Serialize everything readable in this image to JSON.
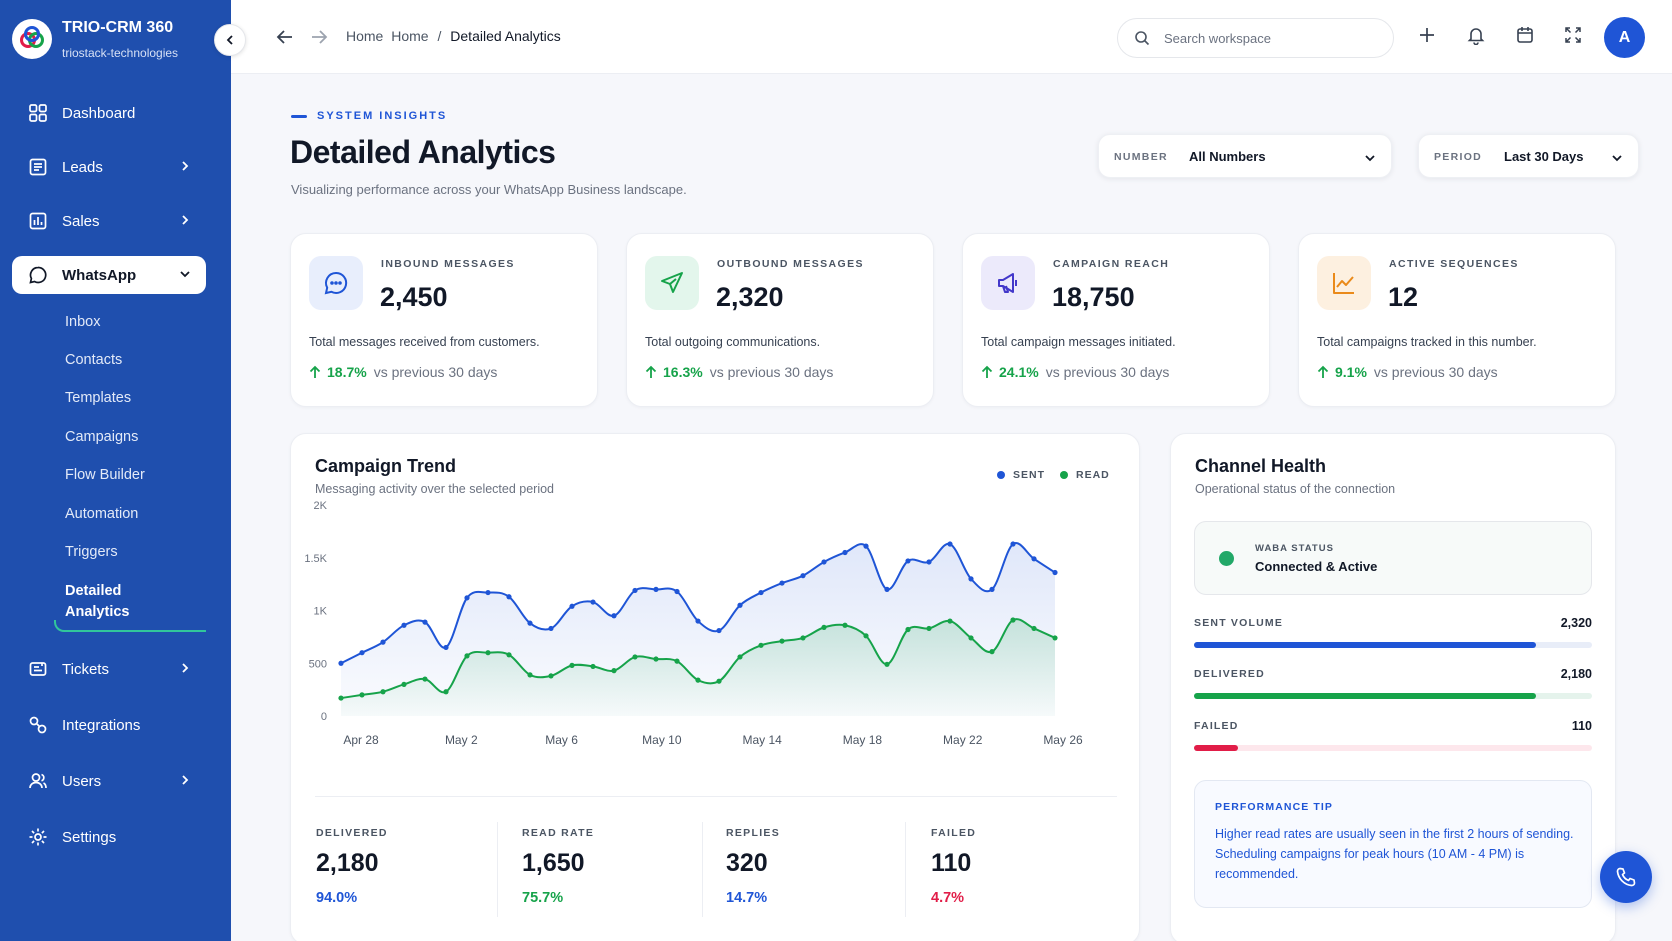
{
  "app": {
    "name": "TRIO-CRM 360",
    "workspace": "triostack-technologies"
  },
  "sidebar": {
    "items": [
      {
        "label": "Dashboard"
      },
      {
        "label": "Leads"
      },
      {
        "label": "Sales"
      },
      {
        "label": "WhatsApp"
      },
      {
        "label": "Tickets"
      },
      {
        "label": "Integrations"
      },
      {
        "label": "Users"
      },
      {
        "label": "Settings"
      }
    ],
    "whatsapp_sub": [
      "Inbox",
      "Contacts",
      "Templates",
      "Campaigns",
      "Flow Builder",
      "Automation",
      "Triggers"
    ],
    "current_sub": "Detailed Analytics"
  },
  "header": {
    "breadcrumb": {
      "home_a": "Home",
      "home_b": "Home",
      "sep": "/",
      "current": "Detailed Analytics"
    },
    "search_placeholder": "Search workspace",
    "avatar": "A"
  },
  "page": {
    "eyebrow": "SYSTEM INSIGHTS",
    "title": "Detailed Analytics",
    "subtitle": "Visualizing performance across your WhatsApp Business landscape.",
    "filters": {
      "number_label": "NUMBER",
      "number_value": "All Numbers",
      "period_label": "PERIOD",
      "period_value": "Last 30 Days"
    }
  },
  "stats": [
    {
      "label": "INBOUND MESSAGES",
      "value": "2,450",
      "desc": "Total messages received from customers.",
      "pct": "18.7%",
      "vs": "vs previous 30 days",
      "icon": "chat-bubble-icon"
    },
    {
      "label": "OUTBOUND MESSAGES",
      "value": "2,320",
      "desc": "Total outgoing communications.",
      "pct": "16.3%",
      "vs": "vs previous 30 days",
      "icon": "paper-plane-icon"
    },
    {
      "label": "CAMPAIGN REACH",
      "value": "18,750",
      "desc": "Total campaign messages initiated.",
      "pct": "24.1%",
      "vs": "vs previous 30 days",
      "icon": "megaphone-icon"
    },
    {
      "label": "ACTIVE SEQUENCES",
      "value": "12",
      "desc": "Total campaigns tracked in this number.",
      "pct": "9.1%",
      "vs": "vs previous 30 days",
      "icon": "trend-line-icon"
    }
  ],
  "trend": {
    "title": "Campaign Trend",
    "subtitle": "Messaging activity over the selected period",
    "legend": {
      "sent": "SENT",
      "read": "READ"
    },
    "kpis": [
      {
        "label": "DELIVERED",
        "value": "2,180",
        "pct": "94.0%",
        "color": "#1f55d6"
      },
      {
        "label": "READ RATE",
        "value": "1,650",
        "pct": "75.7%",
        "color": "#16a34a"
      },
      {
        "label": "REPLIES",
        "value": "320",
        "pct": "14.7%",
        "color": "#1f55d6"
      },
      {
        "label": "FAILED",
        "value": "110",
        "pct": "4.7%",
        "color": "#e11d48"
      }
    ]
  },
  "chart_data": {
    "type": "area",
    "x_tick_labels": [
      "Apr 28",
      "May 2",
      "May 6",
      "May 10",
      "May 14",
      "May 18",
      "May 22",
      "May 26"
    ],
    "y_tick_labels": [
      "0",
      "500",
      "1K",
      "1.5K",
      "2K"
    ],
    "ylim": [
      0,
      2000
    ],
    "series": [
      {
        "name": "SENT",
        "color": "#1f55d6",
        "values": [
          500,
          600,
          700,
          860,
          890,
          650,
          1120,
          1170,
          1130,
          880,
          830,
          1040,
          1080,
          950,
          1190,
          1200,
          1180,
          900,
          810,
          1050,
          1170,
          1260,
          1330,
          1460,
          1550,
          1610,
          1200,
          1470,
          1460,
          1630,
          1300,
          1200,
          1630,
          1490,
          1360
        ]
      },
      {
        "name": "READ",
        "color": "#16a34a",
        "values": [
          170,
          200,
          230,
          300,
          350,
          230,
          570,
          600,
          580,
          390,
          380,
          480,
          470,
          430,
          560,
          540,
          520,
          340,
          330,
          560,
          670,
          710,
          740,
          840,
          860,
          760,
          490,
          820,
          830,
          900,
          740,
          610,
          910,
          830,
          740
        ]
      }
    ]
  },
  "health": {
    "title": "Channel Health",
    "subtitle": "Operational status of the connection",
    "waba_label": "WABA STATUS",
    "waba_value": "Connected & Active",
    "bars": [
      {
        "label": "SENT VOLUME",
        "value": "2,320",
        "fraction": 0.86,
        "color": "#1f55d6",
        "track": "#e8edf8"
      },
      {
        "label": "DELIVERED",
        "value": "2,180",
        "fraction": 0.86,
        "color": "#16a34a",
        "track": "#e5f3ec"
      },
      {
        "label": "FAILED",
        "value": "110",
        "fraction": 0.11,
        "color": "#e11d48",
        "track": "#fde7ec"
      }
    ],
    "tip_title": "PERFORMANCE TIP",
    "tip_body": "Higher read rates are usually seen in the first 2 hours of sending. Scheduling campaigns for peak hours (10 AM - 4 PM) is recommended."
  }
}
